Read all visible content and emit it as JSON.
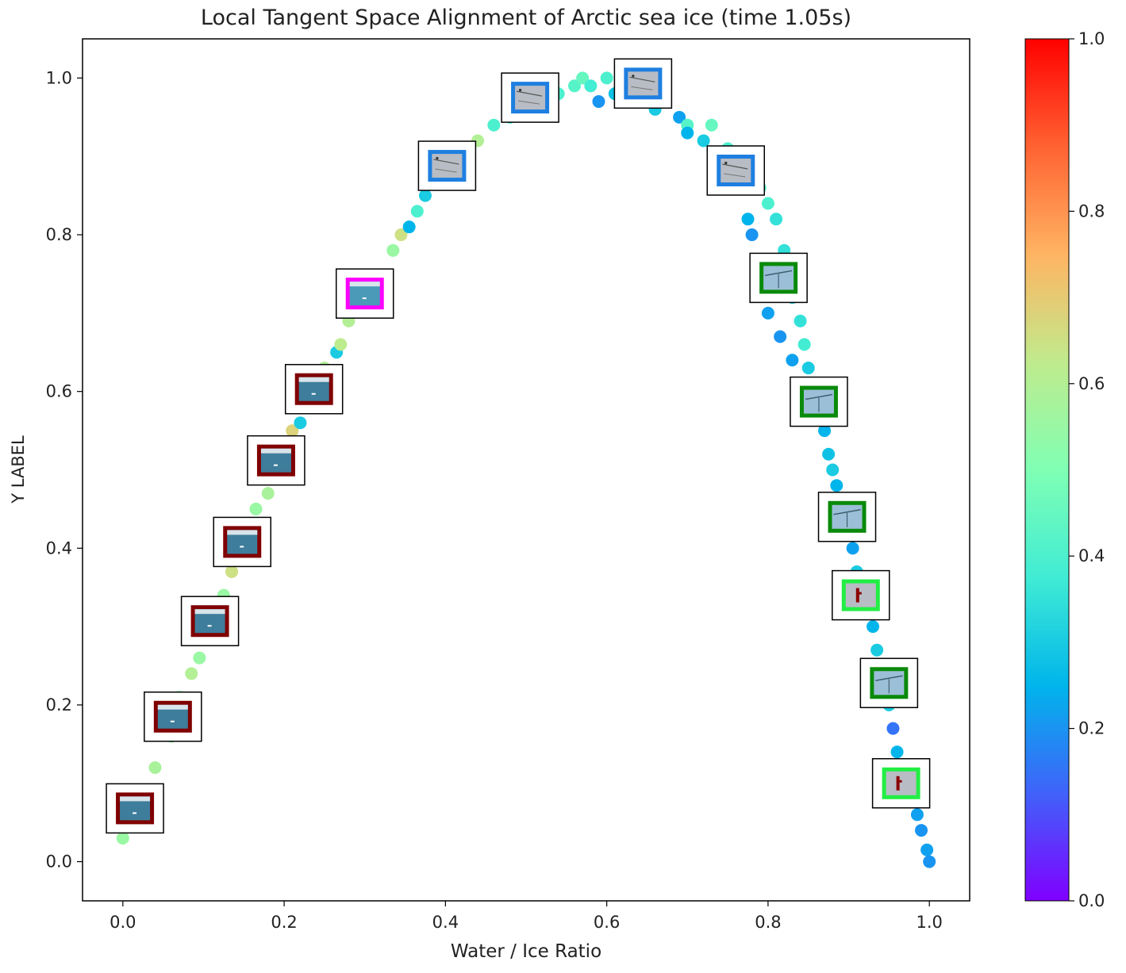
{
  "chart_data": {
    "type": "scatter",
    "title": "Local Tangent Space Alignment of Arctic sea ice (time 1.05s)",
    "xlabel": "Water / Ice Ratio",
    "ylabel": "Y LABEL",
    "xlim": [
      -0.05,
      1.05
    ],
    "ylim": [
      -0.05,
      1.05
    ],
    "xticks": [
      "0.0",
      "0.2",
      "0.4",
      "0.6",
      "0.8",
      "1.0"
    ],
    "yticks": [
      "0.0",
      "0.2",
      "0.4",
      "0.6",
      "0.8",
      "1.0"
    ],
    "colorbar": {
      "colormap": "rainbow",
      "range": [
        0.0,
        1.0
      ],
      "ticks": [
        "0.0",
        "0.2",
        "0.4",
        "0.6",
        "0.8",
        "1.0"
      ]
    },
    "grid": false,
    "points": [
      {
        "x": 0.0,
        "y": 0.03,
        "c": 0.55
      },
      {
        "x": 0.02,
        "y": 0.07,
        "c": 0.6
      },
      {
        "x": 0.04,
        "y": 0.12,
        "c": 0.58
      },
      {
        "x": 0.06,
        "y": 0.16,
        "c": 0.55
      },
      {
        "x": 0.07,
        "y": 0.21,
        "c": 0.52
      },
      {
        "x": 0.085,
        "y": 0.24,
        "c": 0.6
      },
      {
        "x": 0.095,
        "y": 0.26,
        "c": 0.55
      },
      {
        "x": 0.11,
        "y": 0.3,
        "c": 0.62
      },
      {
        "x": 0.125,
        "y": 0.34,
        "c": 0.55
      },
      {
        "x": 0.135,
        "y": 0.37,
        "c": 0.65
      },
      {
        "x": 0.145,
        "y": 0.41,
        "c": 0.55
      },
      {
        "x": 0.165,
        "y": 0.45,
        "c": 0.55
      },
      {
        "x": 0.18,
        "y": 0.47,
        "c": 0.58
      },
      {
        "x": 0.19,
        "y": 0.51,
        "c": 0.5
      },
      {
        "x": 0.21,
        "y": 0.55,
        "c": 0.68
      },
      {
        "x": 0.22,
        "y": 0.56,
        "c": 0.3
      },
      {
        "x": 0.235,
        "y": 0.59,
        "c": 0.45
      },
      {
        "x": 0.25,
        "y": 0.63,
        "c": 0.6
      },
      {
        "x": 0.265,
        "y": 0.65,
        "c": 0.3
      },
      {
        "x": 0.27,
        "y": 0.66,
        "c": 0.62
      },
      {
        "x": 0.28,
        "y": 0.69,
        "c": 0.6
      },
      {
        "x": 0.3,
        "y": 0.71,
        "c": 0.5
      },
      {
        "x": 0.32,
        "y": 0.74,
        "c": 0.45
      },
      {
        "x": 0.335,
        "y": 0.78,
        "c": 0.55
      },
      {
        "x": 0.345,
        "y": 0.8,
        "c": 0.65
      },
      {
        "x": 0.355,
        "y": 0.81,
        "c": 0.25
      },
      {
        "x": 0.365,
        "y": 0.83,
        "c": 0.4
      },
      {
        "x": 0.375,
        "y": 0.85,
        "c": 0.3
      },
      {
        "x": 0.39,
        "y": 0.87,
        "c": 0.45
      },
      {
        "x": 0.41,
        "y": 0.89,
        "c": 0.35
      },
      {
        "x": 0.425,
        "y": 0.9,
        "c": 0.4
      },
      {
        "x": 0.44,
        "y": 0.92,
        "c": 0.6
      },
      {
        "x": 0.46,
        "y": 0.94,
        "c": 0.4
      },
      {
        "x": 0.48,
        "y": 0.95,
        "c": 0.38
      },
      {
        "x": 0.5,
        "y": 0.96,
        "c": 0.4
      },
      {
        "x": 0.52,
        "y": 0.97,
        "c": 0.35
      },
      {
        "x": 0.54,
        "y": 0.98,
        "c": 0.4
      },
      {
        "x": 0.56,
        "y": 0.99,
        "c": 0.42
      },
      {
        "x": 0.57,
        "y": 1.0,
        "c": 0.45
      },
      {
        "x": 0.58,
        "y": 0.99,
        "c": 0.38
      },
      {
        "x": 0.59,
        "y": 0.97,
        "c": 0.2
      },
      {
        "x": 0.6,
        "y": 1.0,
        "c": 0.4
      },
      {
        "x": 0.61,
        "y": 0.98,
        "c": 0.28
      },
      {
        "x": 0.63,
        "y": 0.99,
        "c": 0.35
      },
      {
        "x": 0.66,
        "y": 0.96,
        "c": 0.3
      },
      {
        "x": 0.67,
        "y": 0.97,
        "c": 0.4
      },
      {
        "x": 0.69,
        "y": 0.95,
        "c": 0.22
      },
      {
        "x": 0.7,
        "y": 0.94,
        "c": 0.42
      },
      {
        "x": 0.7,
        "y": 0.93,
        "c": 0.25
      },
      {
        "x": 0.72,
        "y": 0.92,
        "c": 0.3
      },
      {
        "x": 0.73,
        "y": 0.94,
        "c": 0.45
      },
      {
        "x": 0.75,
        "y": 0.91,
        "c": 0.4
      },
      {
        "x": 0.76,
        "y": 0.86,
        "c": 0.22
      },
      {
        "x": 0.77,
        "y": 0.89,
        "c": 0.38
      },
      {
        "x": 0.775,
        "y": 0.82,
        "c": 0.25
      },
      {
        "x": 0.78,
        "y": 0.8,
        "c": 0.2
      },
      {
        "x": 0.79,
        "y": 0.86,
        "c": 0.42
      },
      {
        "x": 0.8,
        "y": 0.84,
        "c": 0.4
      },
      {
        "x": 0.81,
        "y": 0.82,
        "c": 0.35
      },
      {
        "x": 0.8,
        "y": 0.7,
        "c": 0.22
      },
      {
        "x": 0.815,
        "y": 0.67,
        "c": 0.2
      },
      {
        "x": 0.82,
        "y": 0.78,
        "c": 0.35
      },
      {
        "x": 0.83,
        "y": 0.72,
        "c": 0.3
      },
      {
        "x": 0.83,
        "y": 0.64,
        "c": 0.22
      },
      {
        "x": 0.84,
        "y": 0.69,
        "c": 0.35
      },
      {
        "x": 0.845,
        "y": 0.66,
        "c": 0.38
      },
      {
        "x": 0.85,
        "y": 0.63,
        "c": 0.3
      },
      {
        "x": 0.86,
        "y": 0.6,
        "c": 0.35
      },
      {
        "x": 0.87,
        "y": 0.55,
        "c": 0.25
      },
      {
        "x": 0.875,
        "y": 0.52,
        "c": 0.28
      },
      {
        "x": 0.88,
        "y": 0.5,
        "c": 0.3
      },
      {
        "x": 0.885,
        "y": 0.48,
        "c": 0.25
      },
      {
        "x": 0.89,
        "y": 0.46,
        "c": 0.38
      },
      {
        "x": 0.9,
        "y": 0.42,
        "c": 0.3
      },
      {
        "x": 0.905,
        "y": 0.4,
        "c": 0.22
      },
      {
        "x": 0.91,
        "y": 0.37,
        "c": 0.3
      },
      {
        "x": 0.92,
        "y": 0.33,
        "c": 0.28
      },
      {
        "x": 0.93,
        "y": 0.3,
        "c": 0.25
      },
      {
        "x": 0.935,
        "y": 0.27,
        "c": 0.3
      },
      {
        "x": 0.94,
        "y": 0.24,
        "c": 0.25
      },
      {
        "x": 0.95,
        "y": 0.2,
        "c": 0.3
      },
      {
        "x": 0.955,
        "y": 0.17,
        "c": 0.15
      },
      {
        "x": 0.96,
        "y": 0.14,
        "c": 0.25
      },
      {
        "x": 0.97,
        "y": 0.11,
        "c": 0.3
      },
      {
        "x": 0.98,
        "y": 0.08,
        "c": 0.25
      },
      {
        "x": 0.985,
        "y": 0.06,
        "c": 0.22
      },
      {
        "x": 0.99,
        "y": 0.04,
        "c": 0.2
      },
      {
        "x": 0.997,
        "y": 0.015,
        "c": 0.22
      },
      {
        "x": 1.0,
        "y": 0.0,
        "c": 0.2
      }
    ],
    "thumbnails": [
      {
        "x": 0.015,
        "y": 0.068,
        "frame": "#800000",
        "fill": "#3e7d9b",
        "kind": "water"
      },
      {
        "x": 0.062,
        "y": 0.185,
        "frame": "#800000",
        "fill": "#3e7d9b",
        "kind": "water"
      },
      {
        "x": 0.108,
        "y": 0.307,
        "frame": "#800000",
        "fill": "#3e7d9b",
        "kind": "water"
      },
      {
        "x": 0.148,
        "y": 0.408,
        "frame": "#800000",
        "fill": "#3e7d9b",
        "kind": "water"
      },
      {
        "x": 0.19,
        "y": 0.512,
        "frame": "#800000",
        "fill": "#3e7d9b",
        "kind": "water"
      },
      {
        "x": 0.237,
        "y": 0.603,
        "frame": "#800000",
        "fill": "#3e7d9b",
        "kind": "water"
      },
      {
        "x": 0.3,
        "y": 0.725,
        "frame": "#ff00ff",
        "fill": "#4a9ab8",
        "kind": "water"
      },
      {
        "x": 0.402,
        "y": 0.888,
        "frame": "#1e7fe0",
        "fill": "#b8bcc4",
        "kind": "ice"
      },
      {
        "x": 0.505,
        "y": 0.975,
        "frame": "#1e7fe0",
        "fill": "#b8bcc4",
        "kind": "ice"
      },
      {
        "x": 0.645,
        "y": 0.993,
        "frame": "#1e7fe0",
        "fill": "#b8bcc4",
        "kind": "ice"
      },
      {
        "x": 0.76,
        "y": 0.882,
        "frame": "#1e7fe0",
        "fill": "#b8bcc4",
        "kind": "ice"
      },
      {
        "x": 0.813,
        "y": 0.745,
        "frame": "#0a8a0a",
        "fill": "#9cbfd8",
        "kind": "line"
      },
      {
        "x": 0.863,
        "y": 0.587,
        "frame": "#0a8a0a",
        "fill": "#9cbfd8",
        "kind": "line"
      },
      {
        "x": 0.898,
        "y": 0.44,
        "frame": "#0a8a0a",
        "fill": "#9cbfd8",
        "kind": "line"
      },
      {
        "x": 0.915,
        "y": 0.34,
        "frame": "#22ee44",
        "fill": "#b8bcc4",
        "kind": "red"
      },
      {
        "x": 0.95,
        "y": 0.228,
        "frame": "#0a8a0a",
        "fill": "#9cbfd8",
        "kind": "line"
      },
      {
        "x": 0.965,
        "y": 0.1,
        "frame": "#22ee44",
        "fill": "#b8bcc4",
        "kind": "red"
      }
    ]
  }
}
